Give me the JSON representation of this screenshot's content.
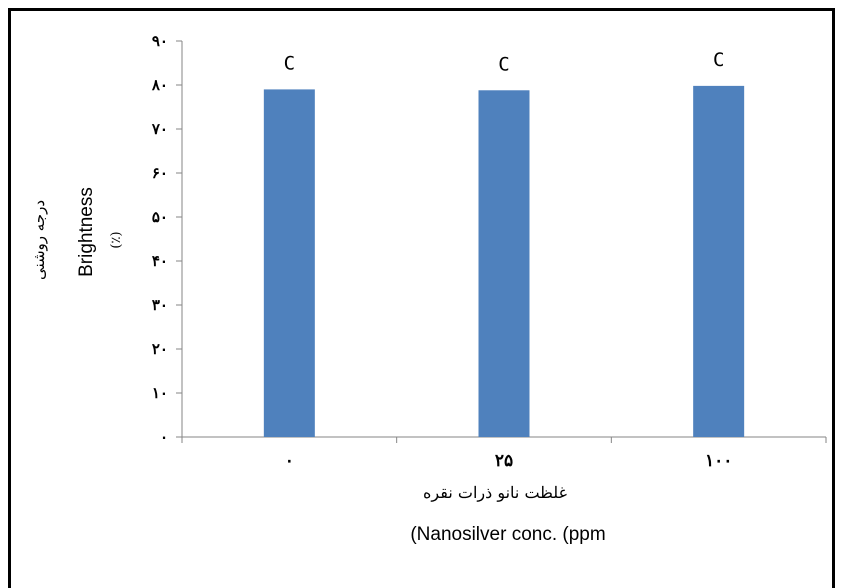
{
  "chart_data": {
    "type": "bar",
    "categories": [
      "۰",
      "۲۵",
      "۱۰۰"
    ],
    "values": [
      79,
      78.8,
      79.8
    ],
    "data_labels": [
      "C",
      "C",
      "C"
    ],
    "ylim": [
      0,
      90
    ],
    "yticks": [
      0,
      10,
      20,
      30,
      40,
      50,
      60,
      70,
      80,
      90
    ],
    "ytick_labels": [
      "۰",
      "۱۰",
      "۲۰",
      "۳۰",
      "۴۰",
      "۵۰",
      "۶۰",
      "۷۰",
      "۸۰",
      "۹۰"
    ],
    "ylabel_fa": "درجه روشنی",
    "ylabel_en": "Brightness",
    "ylabel_unit": "(٪)",
    "xlabel_fa": "غلظت نانو ذرات نقره",
    "xlabel_en": "(Nanosilver conc. (ppm",
    "bar_color": "#4f81bd",
    "grid": false
  }
}
